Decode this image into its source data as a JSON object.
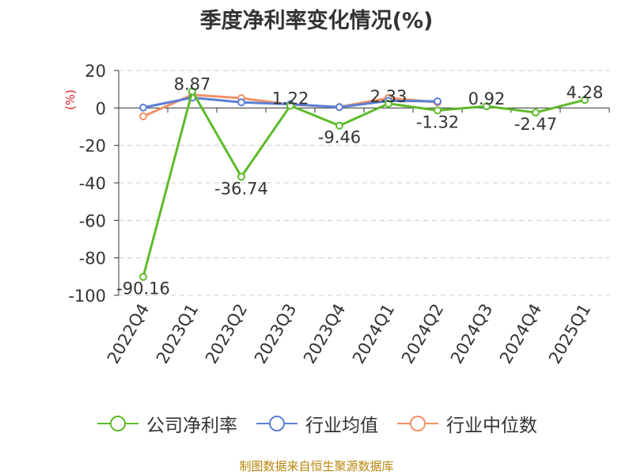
{
  "chart_data": {
    "type": "line",
    "title": "季度净利率变化情况(%)",
    "ylabel": "(%)",
    "xlabel": "",
    "ylim": [
      -100,
      20
    ],
    "yticks": [
      20,
      0,
      -20,
      -40,
      -60,
      -80,
      -100
    ],
    "grid": true,
    "legend_position": "bottom",
    "categories": [
      "2022Q4",
      "2023Q1",
      "2023Q2",
      "2023Q3",
      "2023Q4",
      "2024Q1",
      "2024Q2",
      "2024Q3",
      "2024Q4",
      "2025Q1"
    ],
    "series": [
      {
        "name": "公司净利率",
        "color": "#5dbb2a",
        "values": [
          -90.16,
          8.87,
          -36.74,
          1.22,
          -9.46,
          2.33,
          -1.32,
          0.92,
          -2.47,
          4.28
        ],
        "labels": [
          "-90.16",
          "8.87",
          "-36.74",
          "1.22",
          "-9.46",
          "2.33",
          "-1.32",
          "0.92",
          "-2.47",
          "4.28"
        ]
      },
      {
        "name": "行业均值",
        "color": "#5b7fd6",
        "values": [
          0.2,
          5.5,
          3.0,
          2.0,
          0.4,
          3.8,
          3.5,
          null,
          null,
          null
        ]
      },
      {
        "name": "行业中位数",
        "color": "#f29066",
        "values": [
          -4.5,
          7.0,
          5.2,
          1.8,
          0.5,
          5.3,
          3.0,
          null,
          null,
          null
        ]
      }
    ]
  },
  "source": "制图数据来自恒生聚源数据库"
}
